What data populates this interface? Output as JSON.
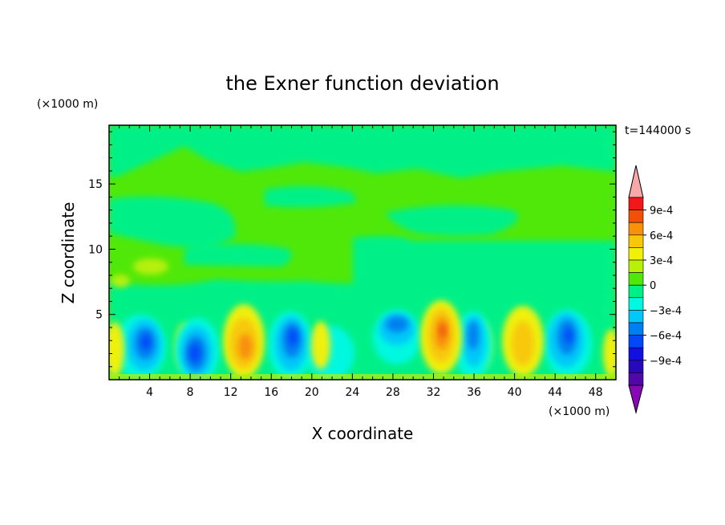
{
  "chart_data": {
    "type": "heatmap",
    "title": "the Exner function deviation",
    "xlabel": "X coordinate",
    "ylabel": "Z coordinate",
    "x_unit": "(×1000 m)",
    "y_unit": "(×1000 m)",
    "time_label": "t=144000 s",
    "xlim": [
      0,
      50
    ],
    "ylim": [
      0,
      19.5
    ],
    "x_ticks": [
      4,
      8,
      12,
      16,
      20,
      24,
      28,
      32,
      36,
      40,
      44,
      48
    ],
    "y_ticks": [
      5,
      10,
      15
    ],
    "colorbar": {
      "levels": [
        -0.0009,
        -0.0006,
        -0.0003,
        0,
        0.0003,
        0.0006,
        0.0009
      ],
      "tick_labels": [
        "9e-4",
        "6e-4",
        "3e-4",
        "0",
        "−3e-4",
        "−6e-4",
        "−9e-4"
      ],
      "colors": [
        "#f8a8a8",
        "#f01818",
        "#f05008",
        "#f89008",
        "#f8c808",
        "#f0f008",
        "#b8f008",
        "#50e808",
        "#00f088",
        "#00f8e0",
        "#00c8f8",
        "#0080f0",
        "#0048f8",
        "#1010e0",
        "#2808b8",
        "#5008a8",
        "#8808b8"
      ]
    },
    "background_level": 0,
    "features": [
      {
        "type": "low",
        "x": 3.3,
        "z": 2.7,
        "value": -0.0006
      },
      {
        "type": "low",
        "x": 8.8,
        "z": 2.3,
        "value": -0.0006
      },
      {
        "type": "high",
        "x": 13.2,
        "z": 3.0,
        "value": 0.0006
      },
      {
        "type": "low",
        "x": 18.0,
        "z": 3.2,
        "value": -0.0006
      },
      {
        "type": "high",
        "x": 21.5,
        "z": 3.0,
        "value": 0.0003
      },
      {
        "type": "low",
        "x": 29.5,
        "z": 4.2,
        "value": -0.0006
      },
      {
        "type": "high",
        "x": 33.0,
        "z": 3.5,
        "value": 0.0006
      },
      {
        "type": "low",
        "x": 36.2,
        "z": 3.2,
        "value": -0.0003
      },
      {
        "type": "high",
        "x": 40.5,
        "z": 3.0,
        "value": 0.0003
      },
      {
        "type": "low",
        "x": 45.2,
        "z": 3.2,
        "value": -0.0006
      },
      {
        "type": "high",
        "x": 49.5,
        "z": 2.5,
        "value": 0.0003
      },
      {
        "type": "high",
        "x": 0.4,
        "z": 2.5,
        "value": 0.0003
      }
    ]
  }
}
